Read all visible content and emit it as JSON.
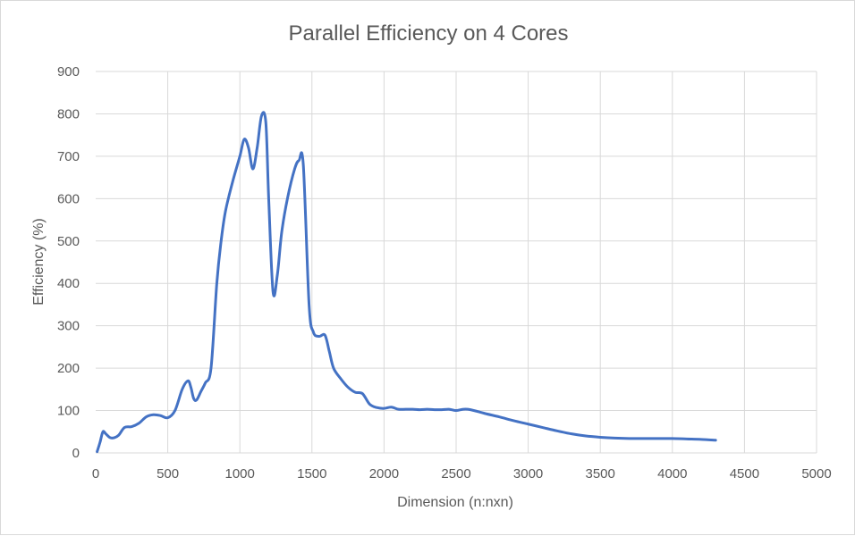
{
  "chart_data": {
    "type": "line",
    "title": "Parallel Efficiency on 4 Cores",
    "xlabel": "Dimension (n:nxn)",
    "ylabel": "Efficiency (%)",
    "xlim": [
      0,
      5000
    ],
    "ylim": [
      0,
      900
    ],
    "x_ticks": [
      0,
      500,
      1000,
      1500,
      2000,
      2500,
      3000,
      3500,
      4000,
      4500,
      5000
    ],
    "y_ticks": [
      0,
      100,
      200,
      300,
      400,
      500,
      600,
      700,
      800,
      900
    ],
    "grid": true,
    "legend": "none",
    "line_color": "#4472c4",
    "series": [
      {
        "values_x": [
          10,
          30,
          50,
          70,
          100,
          130,
          160,
          200,
          250,
          300,
          350,
          400,
          450,
          500,
          550,
          600,
          640,
          660,
          680,
          700,
          730,
          760,
          800,
          840,
          870,
          900,
          950,
          1000,
          1030,
          1060,
          1090,
          1120,
          1150,
          1180,
          1200,
          1230,
          1260,
          1290,
          1330,
          1380,
          1410,
          1440,
          1480,
          1510,
          1550,
          1590,
          1620,
          1650,
          1700,
          1750,
          1800,
          1850,
          1900,
          1950,
          2000,
          2050,
          2100,
          2150,
          2200,
          2250,
          2300,
          2350,
          2400,
          2450,
          2500,
          2550,
          2600,
          2700,
          2800,
          2900,
          3000,
          3100,
          3200,
          3300,
          3400,
          3500,
          3600,
          3700,
          3800,
          3900,
          4000,
          4100,
          4200,
          4300
        ],
        "values": [
          3,
          25,
          50,
          45,
          36,
          36,
          42,
          60,
          62,
          70,
          85,
          90,
          88,
          83,
          100,
          150,
          170,
          155,
          128,
          125,
          145,
          165,
          200,
          400,
          500,
          570,
          640,
          700,
          740,
          720,
          670,
          720,
          795,
          780,
          600,
          380,
          420,
          520,
          600,
          670,
          690,
          680,
          350,
          285,
          275,
          278,
          240,
          200,
          175,
          155,
          143,
          140,
          115,
          107,
          105,
          108,
          103,
          103,
          103,
          102,
          103,
          102,
          102,
          103,
          100,
          103,
          102,
          93,
          85,
          76,
          68,
          60,
          52,
          45,
          40,
          37,
          35,
          34,
          34,
          34,
          34,
          33,
          32,
          30
        ]
      }
    ]
  }
}
